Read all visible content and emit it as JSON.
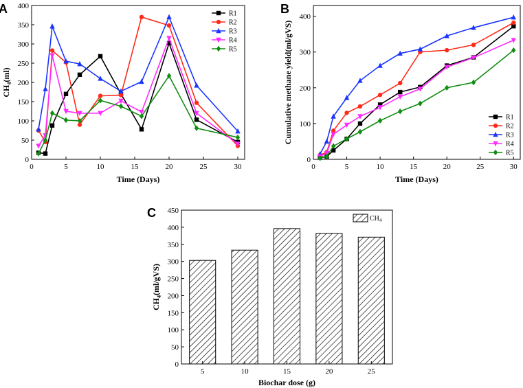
{
  "colors": {
    "R1": "#000000",
    "R2": "#ff2a1a",
    "R3": "#1a35ff",
    "R4": "#ff2aff",
    "R5": "#128c12"
  },
  "chart_data": [
    {
      "id": "A",
      "panel_label": "A",
      "type": "line",
      "title": "",
      "xlabel": "Time (Days)",
      "ylabel_main": "CH",
      "ylabel_sub": "4",
      "ylabel_tail": "(ml)",
      "xlim": [
        0,
        31
      ],
      "ylim": [
        0,
        400
      ],
      "xticks": [
        0,
        5,
        10,
        15,
        20,
        25,
        30
      ],
      "yticks": [
        0,
        50,
        100,
        150,
        200,
        250,
        300,
        350,
        400
      ],
      "legend_position": "top-right",
      "x": [
        1,
        2,
        3,
        5,
        7,
        10,
        13,
        16,
        20,
        24,
        30
      ],
      "series": [
        {
          "name": "R1",
          "color": "#000000",
          "marker": "square",
          "values": [
            17,
            15,
            88,
            170,
            220,
            268,
            170,
            78,
            302,
            103,
            45
          ]
        },
        {
          "name": "R2",
          "color": "#ff2a1a",
          "marker": "circle",
          "values": [
            75,
            45,
            283,
            252,
            90,
            165,
            167,
            370,
            348,
            147,
            35
          ]
        },
        {
          "name": "R3",
          "color": "#1a35ff",
          "marker": "triangle-up",
          "values": [
            78,
            183,
            346,
            255,
            248,
            210,
            177,
            202,
            370,
            192,
            73
          ]
        },
        {
          "name": "R4",
          "color": "#ff2aff",
          "marker": "triangle-down",
          "values": [
            35,
            62,
            270,
            125,
            120,
            120,
            152,
            123,
            315,
            120,
            40
          ]
        },
        {
          "name": "R5",
          "color": "#128c12",
          "marker": "diamond",
          "values": [
            15,
            50,
            120,
            102,
            100,
            153,
            138,
            112,
            217,
            81,
            57
          ]
        }
      ]
    },
    {
      "id": "B",
      "panel_label": "B",
      "type": "line",
      "title": "",
      "xlabel": "Time (Days)",
      "ylabel": "Cumulative methane yield(ml/gVS)",
      "xlim": [
        0,
        31
      ],
      "ylim": [
        0,
        430
      ],
      "xticks": [
        0,
        5,
        10,
        15,
        20,
        25,
        30
      ],
      "yticks": [
        0,
        100,
        200,
        300,
        400
      ],
      "legend_position": "bottom-right",
      "x": [
        1,
        2,
        3,
        5,
        7,
        10,
        13,
        16,
        20,
        24,
        30
      ],
      "series": [
        {
          "name": "R1",
          "color": "#000000",
          "marker": "square",
          "values": [
            5,
            8,
            25,
            57,
            100,
            153,
            188,
            202,
            262,
            285,
            372
          ]
        },
        {
          "name": "R2",
          "color": "#ff2a1a",
          "marker": "circle",
          "values": [
            12,
            20,
            80,
            130,
            148,
            180,
            213,
            300,
            305,
            320,
            382
          ]
        },
        {
          "name": "R3",
          "color": "#1a35ff",
          "marker": "triangle-up",
          "values": [
            15,
            50,
            120,
            172,
            220,
            262,
            296,
            308,
            345,
            368,
            397
          ]
        },
        {
          "name": "R4",
          "color": "#ff2aff",
          "marker": "triangle-down",
          "values": [
            8,
            17,
            70,
            96,
            120,
            145,
            175,
            197,
            258,
            284,
            333
          ]
        },
        {
          "name": "R5",
          "color": "#128c12",
          "marker": "diamond",
          "values": [
            3,
            8,
            37,
            57,
            77,
            108,
            134,
            156,
            200,
            215,
            305
          ]
        }
      ]
    },
    {
      "id": "C",
      "panel_label": "C",
      "type": "bar",
      "title": "",
      "xlabel": "Biochar dose (g)",
      "ylabel_main": "CH",
      "ylabel_sub": "4",
      "ylabel_tail": "(ml/gVS)",
      "categories": [
        "5",
        "10",
        "15",
        "20",
        "25"
      ],
      "ylim": [
        0,
        450
      ],
      "yticks": [
        0,
        50,
        100,
        150,
        200,
        250,
        300,
        350,
        400,
        450
      ],
      "legend_position": "top-right",
      "legend_main": "CH",
      "legend_sub": "4",
      "series": [
        {
          "name": "CH4",
          "values": [
            303,
            333,
            396,
            382,
            371
          ]
        }
      ]
    }
  ]
}
